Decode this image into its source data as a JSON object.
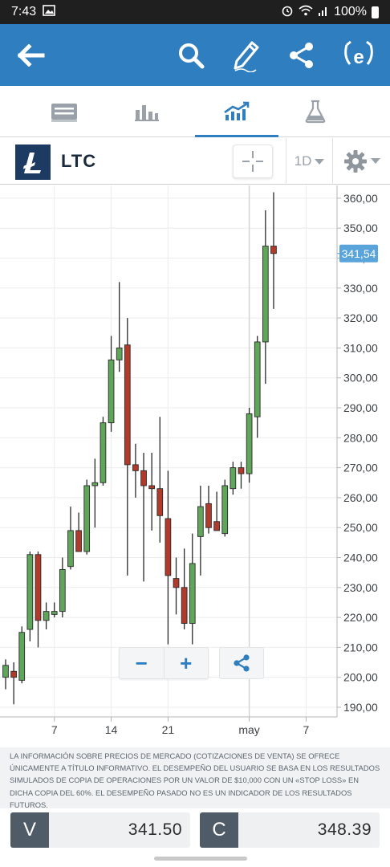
{
  "status_bar": {
    "time": "7:43",
    "battery": "100%"
  },
  "colors": {
    "brand_blue": "#2f7fc0",
    "candle_up": "#5fa55a",
    "candle_down": "#b23a2a",
    "last_price_tag": "#5aa4dc"
  },
  "app_bar": {
    "icons": [
      "back-arrow-icon",
      "search-icon",
      "edit-pen-icon",
      "share-icon",
      "etoro-logo-icon"
    ]
  },
  "tabs": [
    {
      "name": "stats",
      "icon": "stats-card-icon",
      "active": false
    },
    {
      "name": "bars",
      "icon": "bar-chart-icon",
      "active": false
    },
    {
      "name": "chart",
      "icon": "trend-chart-icon",
      "active": true
    },
    {
      "name": "research",
      "icon": "flask-icon",
      "active": false
    }
  ],
  "instrument": {
    "symbol": "LTC",
    "timeframe": "1D"
  },
  "chart_data": {
    "type": "candlestick",
    "last_price_label": "341,54",
    "last_price": 341.54,
    "y_ticks": [
      "360,00",
      "350,00",
      "340,00",
      "330,00",
      "320,00",
      "310,00",
      "300,00",
      "290,00",
      "280,00",
      "270,00",
      "260,00",
      "250,00",
      "240,00",
      "230,00",
      "220,00",
      "210,00",
      "200,00",
      "190,00"
    ],
    "y_tick_values": [
      360,
      350,
      340,
      330,
      320,
      310,
      300,
      290,
      280,
      270,
      260,
      250,
      240,
      230,
      220,
      210,
      200,
      190
    ],
    "x_ticks": [
      "7",
      "14",
      "21",
      "may",
      "7"
    ],
    "x_tick_days": [
      7,
      14,
      21,
      31,
      38
    ],
    "ylim": [
      185,
      362
    ],
    "candles": [
      {
        "d": 1,
        "o": 200,
        "h": 206,
        "l": 196,
        "c": 204
      },
      {
        "d": 2,
        "o": 202,
        "h": 205,
        "l": 191,
        "c": 200
      },
      {
        "d": 3,
        "o": 199,
        "h": 217,
        "l": 198,
        "c": 215
      },
      {
        "d": 4,
        "o": 216,
        "h": 242,
        "l": 212,
        "c": 241
      },
      {
        "d": 5,
        "o": 241,
        "h": 242,
        "l": 210,
        "c": 219
      },
      {
        "d": 6,
        "o": 219,
        "h": 225,
        "l": 216,
        "c": 222
      },
      {
        "d": 7,
        "o": 221,
        "h": 225,
        "l": 220,
        "c": 222
      },
      {
        "d": 8,
        "o": 222,
        "h": 240,
        "l": 220,
        "c": 236
      },
      {
        "d": 9,
        "o": 237,
        "h": 257,
        "l": 236,
        "c": 249
      },
      {
        "d": 10,
        "o": 249,
        "h": 255,
        "l": 242,
        "c": 242
      },
      {
        "d": 11,
        "o": 242,
        "h": 266,
        "l": 241,
        "c": 264
      },
      {
        "d": 12,
        "o": 264,
        "h": 273,
        "l": 250,
        "c": 265
      },
      {
        "d": 13,
        "o": 265,
        "h": 287,
        "l": 264,
        "c": 285
      },
      {
        "d": 14,
        "o": 285,
        "h": 314,
        "l": 282,
        "c": 306
      },
      {
        "d": 15,
        "o": 306,
        "h": 332,
        "l": 302,
        "c": 310
      },
      {
        "d": 16,
        "o": 311,
        "h": 320,
        "l": 234,
        "c": 271
      },
      {
        "d": 17,
        "o": 271,
        "h": 278,
        "l": 260,
        "c": 269
      },
      {
        "d": 18,
        "o": 269,
        "h": 275,
        "l": 232,
        "c": 264
      },
      {
        "d": 19,
        "o": 264,
        "h": 275,
        "l": 249,
        "c": 263
      },
      {
        "d": 20,
        "o": 263,
        "h": 287,
        "l": 245,
        "c": 254
      },
      {
        "d": 21,
        "o": 253,
        "h": 269,
        "l": 211,
        "c": 234
      },
      {
        "d": 22,
        "o": 233,
        "h": 240,
        "l": 221,
        "c": 230
      },
      {
        "d": 23,
        "o": 230,
        "h": 243,
        "l": 216,
        "c": 218
      },
      {
        "d": 24,
        "o": 218,
        "h": 248,
        "l": 211,
        "c": 238
      },
      {
        "d": 25,
        "o": 247,
        "h": 264,
        "l": 234,
        "c": 257
      },
      {
        "d": 26,
        "o": 258,
        "h": 264,
        "l": 248,
        "c": 250
      },
      {
        "d": 27,
        "o": 252,
        "h": 262,
        "l": 249,
        "c": 249
      },
      {
        "d": 28,
        "o": 248,
        "h": 266,
        "l": 247,
        "c": 264
      },
      {
        "d": 29,
        "o": 263,
        "h": 272,
        "l": 261,
        "c": 270
      },
      {
        "d": 30,
        "o": 270,
        "h": 272,
        "l": 263,
        "c": 268
      },
      {
        "d": 31,
        "o": 268,
        "h": 290,
        "l": 265,
        "c": 288
      },
      {
        "d": 32,
        "o": 287,
        "h": 314,
        "l": 280,
        "c": 312
      },
      {
        "d": 33,
        "o": 312,
        "h": 356,
        "l": 298,
        "c": 344
      },
      {
        "d": 34,
        "o": 344,
        "h": 362,
        "l": 323,
        "c": 341.54
      }
    ]
  },
  "controls": {
    "zoom_out": "−",
    "zoom_in": "+"
  },
  "disclaimer": "LA INFORMACIÓN SOBRE PRECIOS DE MERCADO (COTIZACIONES DE VENTA) SE OFRECE ÚNICAMENTE A TÍTULO INFORMATIVO. EL DESEMPEÑO DEL USUARIO SE BASA EN LOS RESULTADOS SIMULADOS DE COPIA DE OPERACIONES POR UN VALOR DE $10,000 CON UN «STOP LOSS» EN DICHA COPIA DEL 60%. EL DESEMPEÑO PASADO NO ES UN INDICADOR DE LOS RESULTADOS FUTUROS.",
  "trade": {
    "sell": {
      "label": "V",
      "price": "341.50"
    },
    "buy": {
      "label": "C",
      "price": "348.39"
    }
  }
}
